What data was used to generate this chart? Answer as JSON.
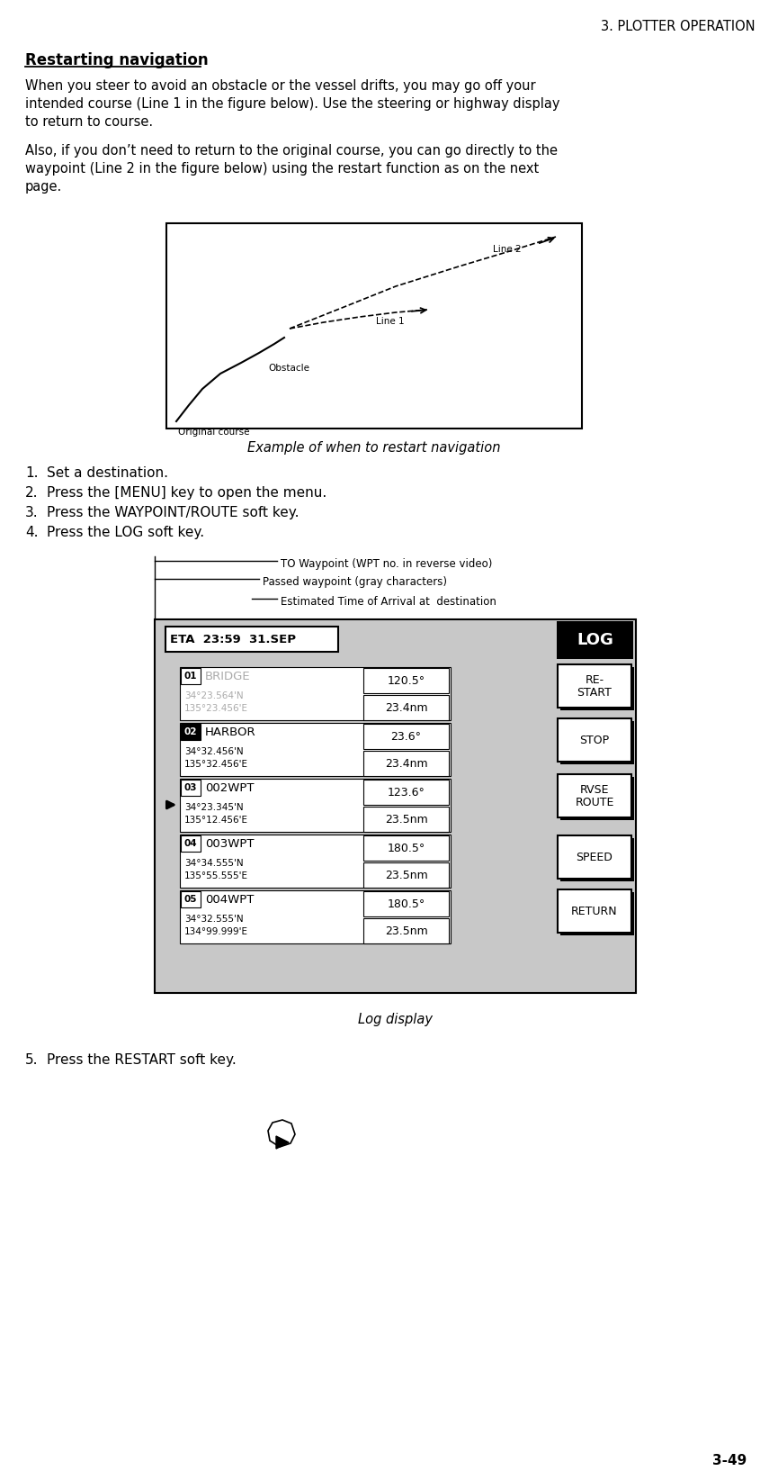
{
  "page_header": "3. PLOTTER OPERATION",
  "page_number": "3-49",
  "section_title": "Restarting navigation",
  "para1_lines": [
    "When you steer to avoid an obstacle or the vessel drifts, you may go off your",
    "intended course (Line 1 in the figure below). Use the steering or highway display",
    "to return to course."
  ],
  "para2_lines": [
    "Also, if you don’t need to return to the original course, you can go directly to the",
    "waypoint (Line 2 in the figure below) using the restart function as on the next",
    "page."
  ],
  "fig_caption": "Example of when to restart navigation",
  "steps": [
    "Set a destination.",
    "Press the [MENU] key to open the menu.",
    "Press the WAYPOINT/ROUTE soft key.",
    "Press the LOG soft key."
  ],
  "step5": "Press the RESTART soft key.",
  "annotation1": "TO Waypoint (WPT no. in reverse video)",
  "annotation2": "Passed waypoint (gray characters)",
  "annotation3": "Estimated Time of Arrival at  destination",
  "log_caption": "Log display",
  "eta_text": "ETA  23:59  31.SEP",
  "log_label": "LOG",
  "waypoints": [
    {
      "num": "01",
      "name": "BRIDGE",
      "lat": "34°23.564'N",
      "lon": "135°23.456'E",
      "bearing": "120.5°",
      "dist": "23.4nm",
      "gray": true,
      "reverse": false,
      "arrow": false
    },
    {
      "num": "02",
      "name": "HARBOR",
      "lat": "34°32.456'N",
      "lon": "135°32.456'E",
      "bearing": "23.6°",
      "dist": "23.4nm",
      "gray": false,
      "reverse": true,
      "arrow": false
    },
    {
      "num": "03",
      "name": "002WPT",
      "lat": "34°23.345'N",
      "lon": "135°12.456'E",
      "bearing": "123.6°",
      "dist": "23.5nm",
      "gray": false,
      "reverse": false,
      "arrow": true
    },
    {
      "num": "04",
      "name": "003WPT",
      "lat": "34°34.555'N",
      "lon": "135°55.555'E",
      "bearing": "180.5°",
      "dist": "23.5nm",
      "gray": false,
      "reverse": false,
      "arrow": false
    },
    {
      "num": "05",
      "name": "004WPT",
      "lat": "34°32.555'N",
      "lon": "134°99.999'E",
      "bearing": "180.5°",
      "dist": "23.5nm",
      "gray": false,
      "reverse": false,
      "arrow": false
    }
  ],
  "softkeys": [
    "RE-\nSTART",
    "STOP",
    "RVSE\nROUTE",
    "SPEED",
    "RETURN"
  ],
  "bg_color": "#c8c8c8",
  "white": "#ffffff",
  "black": "#000000",
  "gray_text": "#aaaaaa"
}
